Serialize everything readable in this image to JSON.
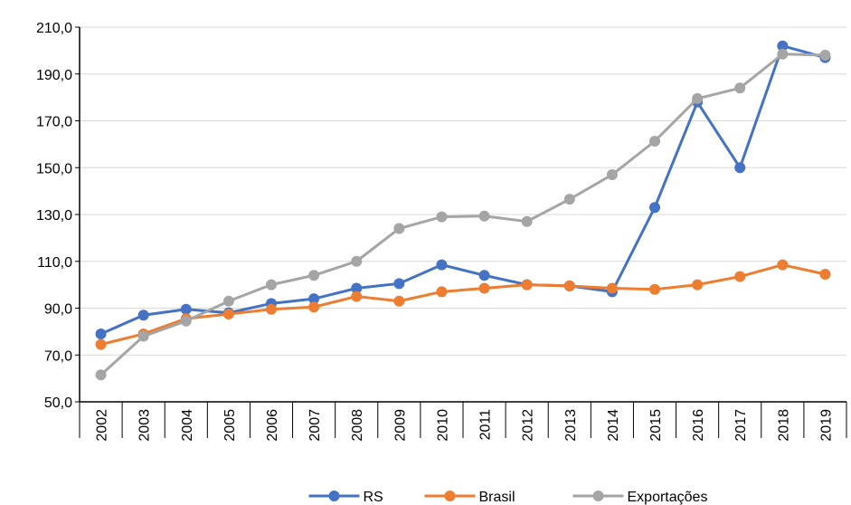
{
  "chart_data": {
    "type": "line",
    "categories": [
      "2002",
      "2003",
      "2004",
      "2005",
      "2006",
      "2007",
      "2008",
      "2009",
      "2010",
      "2011",
      "2012",
      "2013",
      "2014",
      "2015",
      "2016",
      "2017",
      "2018",
      "2019"
    ],
    "series": [
      {
        "name": "RS",
        "color": "#4472c4",
        "values": [
          79,
          87,
          89.5,
          88,
          92,
          94,
          98.5,
          100.5,
          108.5,
          104,
          100,
          99.5,
          97,
          133,
          178,
          150,
          202,
          197
        ]
      },
      {
        "name": "Brasil",
        "color": "#ed7d31",
        "values": [
          74.5,
          79,
          85.5,
          87.5,
          89.5,
          90.5,
          95,
          93,
          97,
          98.5,
          100,
          99.5,
          98.5,
          98,
          100,
          103.5,
          108.5,
          104.5
        ]
      },
      {
        "name": "Exportações",
        "color": "#a5a5a5",
        "values": [
          61.5,
          78,
          84.5,
          93,
          100,
          104,
          110,
          124,
          129,
          129.3,
          127,
          136.5,
          147,
          161.3,
          179.5,
          184,
          198.5,
          198
        ]
      }
    ],
    "ylim": [
      50,
      210
    ],
    "yticks": [
      {
        "value": 50,
        "label": "50,0"
      },
      {
        "value": 70,
        "label": "70,0"
      },
      {
        "value": 90,
        "label": "90,0"
      },
      {
        "value": 110,
        "label": "110,0"
      },
      {
        "value": 130,
        "label": "130,0"
      },
      {
        "value": 150,
        "label": "150,0"
      },
      {
        "value": 170,
        "label": "170,0"
      },
      {
        "value": 190,
        "label": "190,0"
      },
      {
        "value": 210,
        "label": "210,0"
      }
    ],
    "grid": true,
    "legend": "bottom"
  }
}
